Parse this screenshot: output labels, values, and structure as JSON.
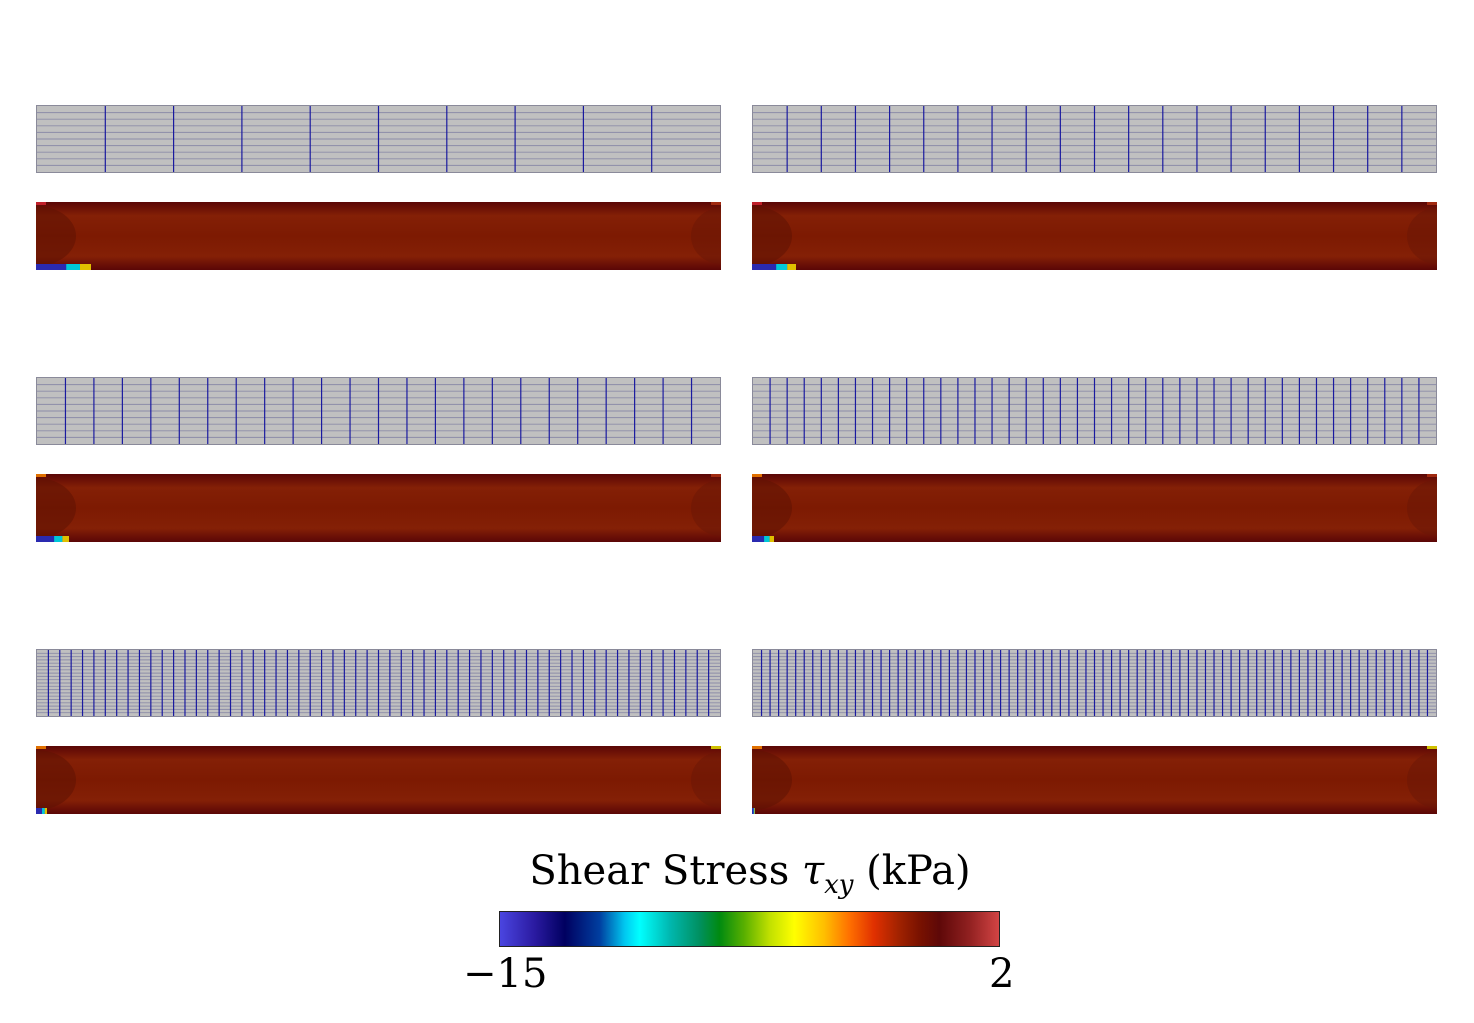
{
  "figure": {
    "panels": [
      {
        "mesh_divisions_x": 10,
        "mesh_divisions_y": 10
      },
      {
        "mesh_divisions_x": 20,
        "mesh_divisions_y": 10
      },
      {
        "mesh_divisions_x": 24,
        "mesh_divisions_y": 10
      },
      {
        "mesh_divisions_x": 40,
        "mesh_divisions_y": 10
      },
      {
        "mesh_divisions_x": 60,
        "mesh_divisions_y": 20
      },
      {
        "mesh_divisions_x": 80,
        "mesh_divisions_y": 20
      }
    ],
    "colors": {
      "mesh_background": "#c0c0c0",
      "mesh_horizontal_lines": "#8c8ca8",
      "mesh_vertical_lines": "#1a1aa0",
      "field_base": "#7d1a02",
      "field_edge": "#5a0606"
    }
  },
  "colorbar": {
    "title": "Shear Stress",
    "symbol": "τ",
    "subscript": "xy",
    "unit": "(kPa)",
    "min_label": "−15",
    "max_label": "2",
    "min": -15,
    "max": 2
  }
}
